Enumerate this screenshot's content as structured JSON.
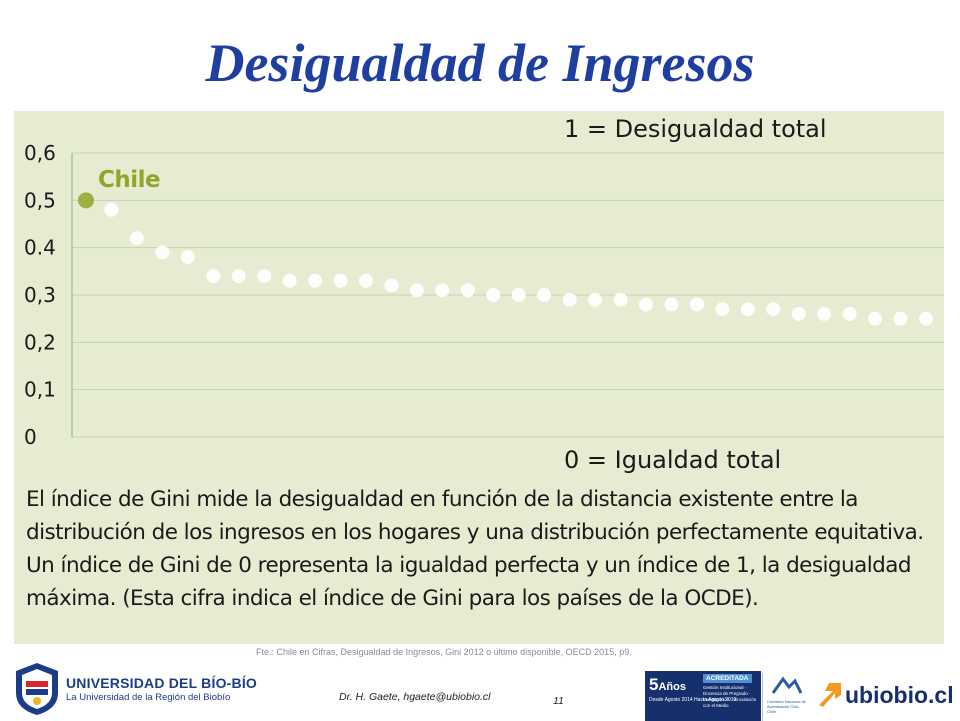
{
  "slide": {
    "title": "Desigualdad de Ingresos"
  },
  "chart_data": {
    "type": "scatter",
    "title": "",
    "xlabel": "",
    "ylabel": "",
    "ylim": [
      0,
      0.6
    ],
    "y_ticks": [
      {
        "value": 0.6,
        "label": "0,6"
      },
      {
        "value": 0.5,
        "label": "0,5"
      },
      {
        "value": 0.4,
        "label": "0.4"
      },
      {
        "value": 0.3,
        "label": "0,3"
      },
      {
        "value": 0.2,
        "label": "0,2"
      },
      {
        "value": 0.1,
        "label": "0,1"
      },
      {
        "value": 0,
        "label": "0"
      }
    ],
    "grid": true,
    "highlight": {
      "label": "Chile",
      "index": 0,
      "color": "#8fa62a"
    },
    "point_color": "#ffffff",
    "values": [
      0.5,
      0.48,
      0.42,
      0.39,
      0.38,
      0.34,
      0.34,
      0.34,
      0.33,
      0.33,
      0.33,
      0.33,
      0.32,
      0.31,
      0.31,
      0.31,
      0.3,
      0.3,
      0.3,
      0.29,
      0.29,
      0.29,
      0.28,
      0.28,
      0.28,
      0.27,
      0.27,
      0.27,
      0.26,
      0.26,
      0.26,
      0.25,
      0.25,
      0.25
    ],
    "annotations": {
      "top": "1 = Desigualdad total",
      "bottom": "0 = Igualdad total"
    }
  },
  "caption": "El índice de Gini mide la desigualdad en función de la distancia existente entre la distribución de los ingresos en los hogares y una distribución perfectamente equitativa. Un índice de Gini de 0 representa la igualdad perfecta y un índice de 1, la desigualdad máxima. (Esta cifra indica el índice de Gini para los países de la OCDE).",
  "source": "Fte.: Chile en Cifras, Desigualdad de Ingresos, Gini 2012 o último disponible, OECD 2015, p9.",
  "footer": {
    "university": "UNIVERSIDAD DEL BÍO-BÍO",
    "tagline": "La Universidad de la Región del Biobío",
    "author": "Dr. H. Gaete,   hgaete@ubiobio.cl",
    "page": "11",
    "accreditation": {
      "years": "5",
      "years_unit": "Años",
      "title": "ACREDITADA",
      "period": "Desde Agosto 2014 Hasta Agosto 2019",
      "areas": "Gestión Institucional · Docencia de Pregrado · Investigación · Vinculación con el Medio"
    },
    "cna": "Comisión Nacional de Acreditación CNA-Chile",
    "website": "ubiobio.cl"
  },
  "colors": {
    "title": "#1f3fa0",
    "panel_bg": "#e6ecd1",
    "highlight": "#8fa62a",
    "brand_blue": "#16306e",
    "accent_orange": "#f39a1e"
  }
}
